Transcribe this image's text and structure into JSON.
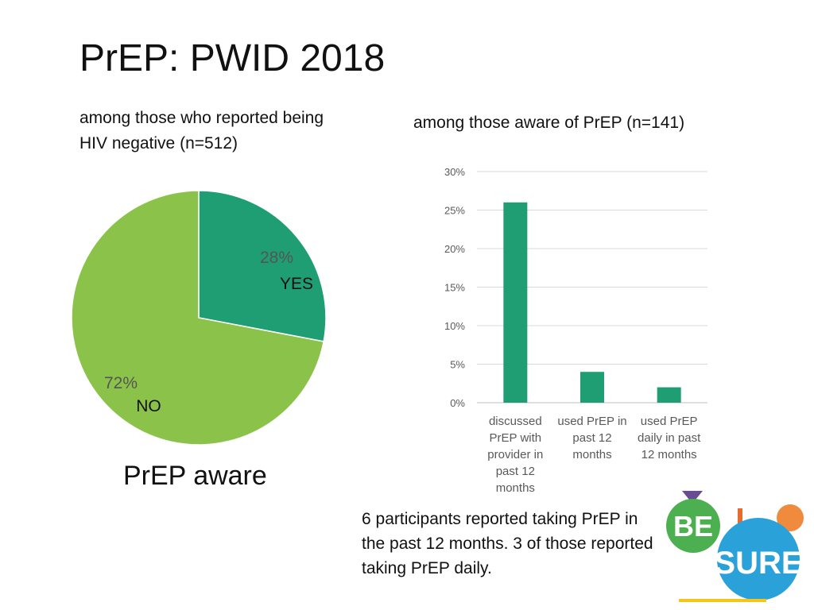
{
  "slide": {
    "title": "PrEP: PWID 2018",
    "left_subtitle": "among those who reported being HIV negative (n=512)",
    "right_subtitle": "among those aware of PrEP (n=141)",
    "pie_caption": "PrEP aware",
    "note": "6 participants reported taking PrEP in the past 12 months. 3 of those reported taking PrEP daily.",
    "logo_text_top": "BE",
    "logo_text_bottom": "SURE"
  },
  "chart_data": [
    {
      "type": "pie",
      "slices": [
        {
          "label": "YES",
          "value": 28,
          "value_label": "28%",
          "color": "#1f9e74"
        },
        {
          "label": "NO",
          "value": 72,
          "value_label": "72%",
          "color": "#8bc34a"
        }
      ]
    },
    {
      "type": "bar",
      "categories": [
        "discussed PrEP with provider in past 12 months",
        "used PrEP in past 12 months",
        "used PrEP daily in past 12 months"
      ],
      "category_lines": [
        [
          "discussed",
          "PrEP with",
          "provider in",
          "past 12",
          "months"
        ],
        [
          "used PrEP in",
          "past 12",
          "months"
        ],
        [
          "used PrEP",
          "daily in past",
          "12 months"
        ]
      ],
      "values": [
        26,
        4,
        2
      ],
      "ylim": [
        0,
        30
      ],
      "yticks": [
        0,
        5,
        10,
        15,
        20,
        25,
        30
      ],
      "ytick_labels": [
        "0%",
        "5%",
        "10%",
        "15%",
        "20%",
        "25%",
        "30%"
      ],
      "grid": true,
      "bar_color": "#1f9e74"
    }
  ]
}
